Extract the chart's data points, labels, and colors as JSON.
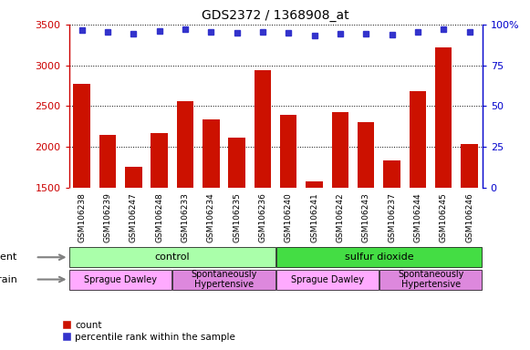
{
  "title": "GDS2372 / 1368908_at",
  "samples": [
    "GSM106238",
    "GSM106239",
    "GSM106247",
    "GSM106248",
    "GSM106233",
    "GSM106234",
    "GSM106235",
    "GSM106236",
    "GSM106240",
    "GSM106241",
    "GSM106242",
    "GSM106243",
    "GSM106237",
    "GSM106244",
    "GSM106245",
    "GSM106246"
  ],
  "counts": [
    2770,
    2150,
    1760,
    2170,
    2560,
    2340,
    2110,
    2940,
    2390,
    1580,
    2430,
    2300,
    1840,
    2680,
    3220,
    2040
  ],
  "percentile_y": [
    96.5,
    95.5,
    94.5,
    96.0,
    97.0,
    95.5,
    95.0,
    95.5,
    95.0,
    93.0,
    94.5,
    94.5,
    94.0,
    95.5,
    97.0,
    95.5
  ],
  "bar_color": "#cc1100",
  "dot_color": "#3333cc",
  "ylim_left": [
    1500,
    3500
  ],
  "ylim_right": [
    0,
    100
  ],
  "yticks_left": [
    1500,
    2000,
    2500,
    3000,
    3500
  ],
  "yticks_right": [
    0,
    25,
    50,
    75,
    100
  ],
  "ytick_labels_right": [
    "0",
    "25",
    "50",
    "75",
    "100%"
  ],
  "hgrid_lines": [
    2000,
    2500,
    3000,
    3500
  ],
  "agent_regions": [
    {
      "label": "control",
      "start": 0,
      "end": 8,
      "color": "#aaffaa"
    },
    {
      "label": "sulfur dioxide",
      "start": 8,
      "end": 16,
      "color": "#44dd44"
    }
  ],
  "strain_regions": [
    {
      "label": "Sprague Dawley",
      "start": 0,
      "end": 4,
      "color": "#ffaaff"
    },
    {
      "label": "Spontaneously\nHypertensive",
      "start": 4,
      "end": 8,
      "color": "#dd88dd"
    },
    {
      "label": "Sprague Dawley",
      "start": 8,
      "end": 12,
      "color": "#ffaaff"
    },
    {
      "label": "Spontaneously\nHypertensive",
      "start": 12,
      "end": 16,
      "color": "#dd88dd"
    }
  ],
  "agent_label": "agent",
  "strain_label": "strain",
  "xtick_bg_color": "#cccccc",
  "plot_bg_color": "#ffffff",
  "title_fontsize": 10,
  "axis_color_left": "#cc0000",
  "axis_color_right": "#0000cc",
  "legend_count_color": "#cc1100",
  "legend_pct_color": "#3333cc"
}
